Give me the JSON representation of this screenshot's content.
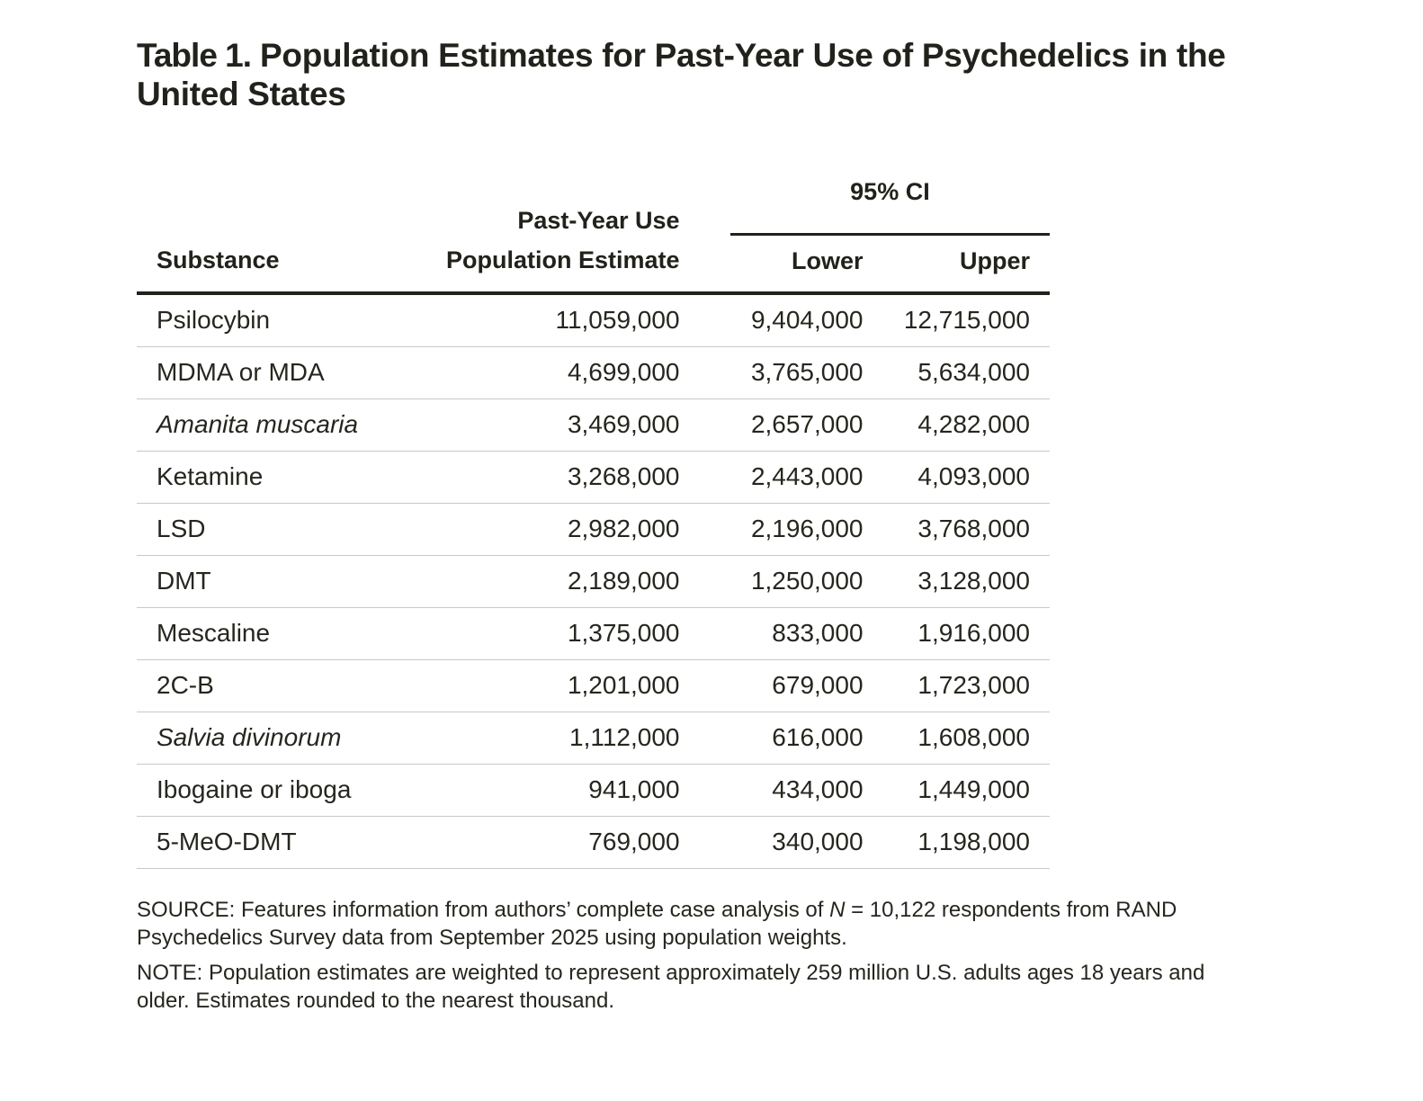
{
  "title": {
    "prefix": "Table 1.",
    "text": " Population Estimates for Past-Year Use of Psychedelics in the United States"
  },
  "table": {
    "headers": {
      "substance": "Substance",
      "estimate_line1": "Past-Year Use",
      "estimate_line2": "Population Estimate",
      "ci_group": "95% CI",
      "lower": "Lower",
      "upper": "Upper"
    },
    "rows": [
      {
        "substance": "Psilocybin",
        "italic": false,
        "estimate": "11,059,000",
        "lower": "9,404,000",
        "upper": "12,715,000"
      },
      {
        "substance": "MDMA or MDA",
        "italic": false,
        "estimate": "4,699,000",
        "lower": "3,765,000",
        "upper": "5,634,000"
      },
      {
        "substance": "Amanita muscaria",
        "italic": true,
        "estimate": "3,469,000",
        "lower": "2,657,000",
        "upper": "4,282,000"
      },
      {
        "substance": "Ketamine",
        "italic": false,
        "estimate": "3,268,000",
        "lower": "2,443,000",
        "upper": "4,093,000"
      },
      {
        "substance": "LSD",
        "italic": false,
        "estimate": "2,982,000",
        "lower": "2,196,000",
        "upper": "3,768,000"
      },
      {
        "substance": "DMT",
        "italic": false,
        "estimate": "2,189,000",
        "lower": "1,250,000",
        "upper": "3,128,000"
      },
      {
        "substance": "Mescaline",
        "italic": false,
        "estimate": "1,375,000",
        "lower": "833,000",
        "upper": "1,916,000"
      },
      {
        "substance": "2C-B",
        "italic": false,
        "estimate": "1,201,000",
        "lower": "679,000",
        "upper": "1,723,000"
      },
      {
        "substance": "Salvia divinorum",
        "italic": true,
        "estimate": "1,112,000",
        "lower": "616,000",
        "upper": "1,608,000"
      },
      {
        "substance": "Ibogaine or iboga",
        "italic": false,
        "estimate": "941,000",
        "lower": "434,000",
        "upper": "1,449,000"
      },
      {
        "substance": "5-MeO-DMT",
        "italic": false,
        "estimate": "769,000",
        "lower": "340,000",
        "upper": "1,198,000"
      }
    ]
  },
  "notes": {
    "source_prefix": "SOURCE: Features information from authors’ complete case analysis of ",
    "source_n": "N",
    "source_suffix": " = 10,122 respondents from RAND Psychedelics Survey data from September 2025 using population weights.",
    "note": "NOTE: Population estimates are weighted to represent approximately 259 million U.S. adults ages 18 years and older. Estimates rounded to the nearest thousand."
  }
}
